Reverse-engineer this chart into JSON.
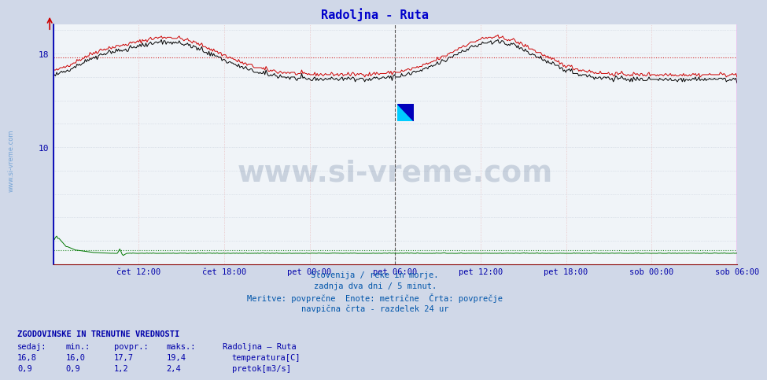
{
  "title": "Radoljna - Ruta",
  "title_color": "#0000cc",
  "fig_bg": "#d0d8e8",
  "plot_bg": "#f0f4f8",
  "grid_color_dot": "#c8d0dc",
  "grid_color_vdot": "#e8a0a0",
  "axis_color": "#0000aa",
  "text_color": "#0000aa",
  "temp_color": "#cc0000",
  "height_color": "#000000",
  "flow_color": "#007700",
  "avg_temp": 17.7,
  "avg_flow": 1.2,
  "vline_mid_color": "#444444",
  "vline_end_color": "#cc00cc",
  "ymin": 0,
  "ymax": 20.5,
  "n": 576,
  "x_tick_labels": [
    "čet 12:00",
    "čet 18:00",
    "pet 00:00",
    "pet 06:00",
    "pet 12:00",
    "pet 18:00",
    "sob 00:00",
    "sob 06:00"
  ],
  "subtitle_lines": [
    "Slovenija / reke in morje.",
    "zadnja dva dni / 5 minut.",
    "Meritve: povprečne  Enote: metrične  Črta: povprečje",
    "navpična črta - razdelek 24 ur"
  ],
  "subtitle_color": "#0055aa",
  "footer_title": "ZGODOVINSKE IN TRENUTNE VREDNOSTI",
  "footer_color": "#0000aa",
  "col_headers": [
    "sedaj:",
    "min.:",
    "povpr.:",
    "maks.:",
    "Radoljna – Ruta"
  ],
  "temp_row": [
    "16,8",
    "16,0",
    "17,7",
    "19,4"
  ],
  "flow_row": [
    "0,9",
    "0,9",
    "1,2",
    "2,4"
  ],
  "temp_legend": "temperatura[C]",
  "flow_legend": "pretok[m3/s]",
  "temp_patch_color": "#cc0000",
  "flow_patch_color": "#007700",
  "sidebar_color": "#4488cc",
  "watermark_color": "#1a3a6a",
  "watermark_alpha": 0.18,
  "logo_yellow": "#ffff00",
  "logo_cyan": "#00ccff",
  "logo_blue": "#0000bb"
}
